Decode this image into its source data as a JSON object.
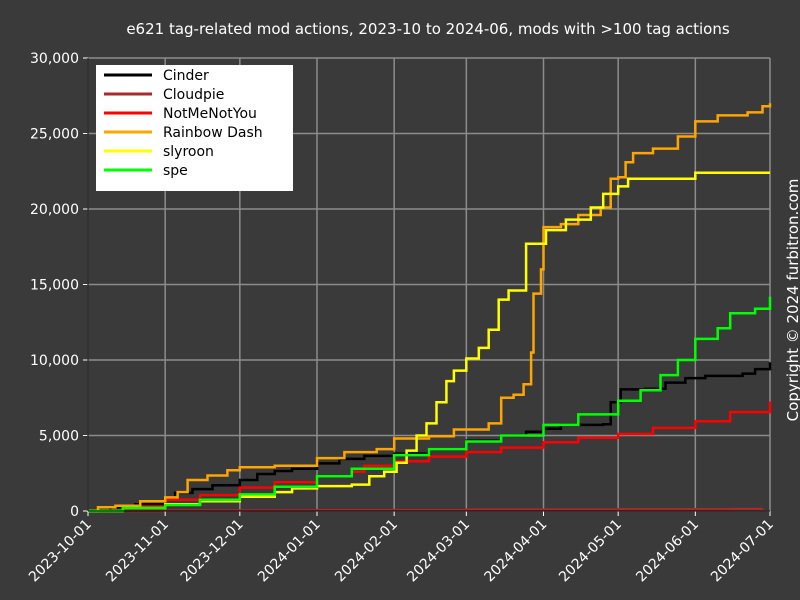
{
  "chart_data": {
    "type": "line",
    "step": true,
    "title": "e621 tag-related mod actions, 2023-10 to 2024-06, mods with >100 tag actions",
    "copyright": "Copyright © 2024 furbitron.com",
    "xlabel": "",
    "ylabel": "",
    "xlim": [
      "2023-10-01",
      "2024-07-01"
    ],
    "ylim": [
      0,
      30000
    ],
    "x_ticks": [
      "2023-10-01",
      "2023-11-01",
      "2023-12-01",
      "2024-01-01",
      "2024-02-01",
      "2024-03-01",
      "2024-04-01",
      "2024-05-01",
      "2024-06-01",
      "2024-07-01"
    ],
    "y_ticks": [
      0,
      5000,
      10000,
      15000,
      20000,
      25000,
      30000
    ],
    "y_tick_labels": [
      "0",
      "5,000",
      "10,000",
      "15,000",
      "20,000",
      "25,000",
      "30,000"
    ],
    "grid": true,
    "legend_position": "top-left",
    "background": "#3a3a3a",
    "grid_color": "#8c8c8c",
    "series": [
      {
        "name": "Cinder",
        "color": "#000000",
        "points": [
          [
            "2023-10-01",
            0
          ],
          [
            "2023-10-10",
            250
          ],
          [
            "2023-10-20",
            450
          ],
          [
            "2023-11-01",
            850
          ],
          [
            "2023-11-05",
            1200
          ],
          [
            "2023-11-12",
            1450
          ],
          [
            "2023-11-20",
            1700
          ],
          [
            "2023-12-01",
            2050
          ],
          [
            "2023-12-08",
            2450
          ],
          [
            "2023-12-15",
            2650
          ],
          [
            "2023-12-22",
            2800
          ],
          [
            "2024-01-01",
            3150
          ],
          [
            "2024-01-10",
            3450
          ],
          [
            "2024-01-20",
            3650
          ],
          [
            "2024-02-01",
            3800
          ],
          [
            "2024-02-15",
            4100
          ],
          [
            "2024-03-01",
            4650
          ],
          [
            "2024-03-15",
            5000
          ],
          [
            "2024-03-25",
            5250
          ],
          [
            "2024-04-01",
            5450
          ],
          [
            "2024-04-08",
            5700
          ],
          [
            "2024-04-25",
            5750
          ],
          [
            "2024-04-28",
            7200
          ],
          [
            "2024-05-02",
            8050
          ],
          [
            "2024-05-12",
            8100
          ],
          [
            "2024-05-20",
            8500
          ],
          [
            "2024-05-28",
            8800
          ],
          [
            "2024-06-05",
            8950
          ],
          [
            "2024-06-20",
            9100
          ],
          [
            "2024-06-25",
            9400
          ],
          [
            "2024-07-01",
            9850
          ]
        ]
      },
      {
        "name": "Cloudpie",
        "color": "#a52a2a",
        "points": [
          [
            "2023-10-01",
            0
          ],
          [
            "2023-11-01",
            30
          ],
          [
            "2024-01-01",
            60
          ],
          [
            "2024-03-01",
            90
          ],
          [
            "2024-05-01",
            110
          ],
          [
            "2024-06-15",
            130
          ],
          [
            "2024-06-28",
            150
          ]
        ]
      },
      {
        "name": "NotMeNotYou",
        "color": "#ff0000",
        "points": [
          [
            "2023-10-01",
            0
          ],
          [
            "2023-10-15",
            300
          ],
          [
            "2023-11-01",
            750
          ],
          [
            "2023-11-15",
            1050
          ],
          [
            "2023-12-01",
            1550
          ],
          [
            "2023-12-15",
            1900
          ],
          [
            "2024-01-01",
            2300
          ],
          [
            "2024-01-15",
            2600
          ],
          [
            "2024-01-20",
            3000
          ],
          [
            "2024-02-01",
            3300
          ],
          [
            "2024-02-15",
            3600
          ],
          [
            "2024-03-01",
            3900
          ],
          [
            "2024-03-15",
            4200
          ],
          [
            "2024-04-01",
            4550
          ],
          [
            "2024-04-15",
            4850
          ],
          [
            "2024-05-01",
            5100
          ],
          [
            "2024-05-15",
            5500
          ],
          [
            "2024-06-01",
            5950
          ],
          [
            "2024-06-15",
            6550
          ],
          [
            "2024-07-01",
            7250
          ]
        ]
      },
      {
        "name": "Rainbow Dash",
        "color": "#ffa500",
        "points": [
          [
            "2023-10-01",
            0
          ],
          [
            "2023-10-05",
            250
          ],
          [
            "2023-10-12",
            350
          ],
          [
            "2023-10-22",
            650
          ],
          [
            "2023-11-01",
            900
          ],
          [
            "2023-11-06",
            1250
          ],
          [
            "2023-11-10",
            2050
          ],
          [
            "2023-11-18",
            2350
          ],
          [
            "2023-11-26",
            2700
          ],
          [
            "2023-12-01",
            2900
          ],
          [
            "2023-12-15",
            3000
          ],
          [
            "2024-01-01",
            3500
          ],
          [
            "2024-01-12",
            3900
          ],
          [
            "2024-01-25",
            4100
          ],
          [
            "2024-02-01",
            4800
          ],
          [
            "2024-02-15",
            4950
          ],
          [
            "2024-02-25",
            5400
          ],
          [
            "2024-03-10",
            5800
          ],
          [
            "2024-03-15",
            7500
          ],
          [
            "2024-03-20",
            7700
          ],
          [
            "2024-03-24",
            8400
          ],
          [
            "2024-03-27",
            10500
          ],
          [
            "2024-03-28",
            14400
          ],
          [
            "2024-03-31",
            16000
          ],
          [
            "2024-04-01",
            18800
          ],
          [
            "2024-04-08",
            19000
          ],
          [
            "2024-04-15",
            19600
          ],
          [
            "2024-04-24",
            20100
          ],
          [
            "2024-04-28",
            22000
          ],
          [
            "2024-05-01",
            22100
          ],
          [
            "2024-05-04",
            23100
          ],
          [
            "2024-05-07",
            23700
          ],
          [
            "2024-05-15",
            24000
          ],
          [
            "2024-05-25",
            24800
          ],
          [
            "2024-06-01",
            25800
          ],
          [
            "2024-06-10",
            26200
          ],
          [
            "2024-06-22",
            26400
          ],
          [
            "2024-06-28",
            26800
          ],
          [
            "2024-07-01",
            27000
          ]
        ]
      },
      {
        "name": "slyroon",
        "color": "#ffff00",
        "points": [
          [
            "2023-10-01",
            0
          ],
          [
            "2023-10-15",
            200
          ],
          [
            "2023-11-01",
            450
          ],
          [
            "2023-11-15",
            650
          ],
          [
            "2023-12-01",
            950
          ],
          [
            "2023-12-15",
            1250
          ],
          [
            "2023-12-22",
            1500
          ],
          [
            "2024-01-01",
            1650
          ],
          [
            "2024-01-15",
            1750
          ],
          [
            "2024-01-22",
            2300
          ],
          [
            "2024-01-28",
            2600
          ],
          [
            "2024-02-02",
            3200
          ],
          [
            "2024-02-06",
            4000
          ],
          [
            "2024-02-10",
            5000
          ],
          [
            "2024-02-14",
            5800
          ],
          [
            "2024-02-18",
            7200
          ],
          [
            "2024-02-22",
            8600
          ],
          [
            "2024-02-25",
            9300
          ],
          [
            "2024-03-01",
            10100
          ],
          [
            "2024-03-06",
            10800
          ],
          [
            "2024-03-10",
            12000
          ],
          [
            "2024-03-14",
            14000
          ],
          [
            "2024-03-18",
            14600
          ],
          [
            "2024-03-25",
            17700
          ],
          [
            "2024-04-02",
            18600
          ],
          [
            "2024-04-10",
            19300
          ],
          [
            "2024-04-20",
            20100
          ],
          [
            "2024-04-25",
            21000
          ],
          [
            "2024-05-01",
            21500
          ],
          [
            "2024-05-05",
            22000
          ],
          [
            "2024-06-01",
            22400
          ],
          [
            "2024-07-01",
            22400
          ]
        ]
      },
      {
        "name": "spe",
        "color": "#00ff00",
        "points": [
          [
            "2023-10-01",
            0
          ],
          [
            "2023-10-15",
            200
          ],
          [
            "2023-11-01",
            400
          ],
          [
            "2023-11-15",
            750
          ],
          [
            "2023-12-01",
            1100
          ],
          [
            "2023-12-15",
            1600
          ],
          [
            "2024-01-01",
            2300
          ],
          [
            "2024-01-15",
            2800
          ],
          [
            "2024-02-01",
            3700
          ],
          [
            "2024-02-15",
            4100
          ],
          [
            "2024-03-01",
            4600
          ],
          [
            "2024-03-15",
            5000
          ],
          [
            "2024-04-01",
            5700
          ],
          [
            "2024-04-15",
            6400
          ],
          [
            "2024-05-01",
            7300
          ],
          [
            "2024-05-10",
            8000
          ],
          [
            "2024-05-18",
            9000
          ],
          [
            "2024-05-25",
            10000
          ],
          [
            "2024-06-01",
            11400
          ],
          [
            "2024-06-10",
            12100
          ],
          [
            "2024-06-15",
            13100
          ],
          [
            "2024-06-25",
            13400
          ],
          [
            "2024-07-01",
            14200
          ]
        ]
      }
    ]
  }
}
